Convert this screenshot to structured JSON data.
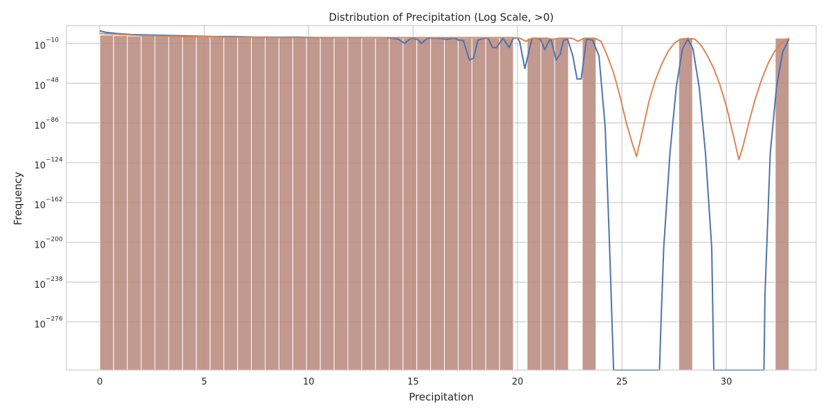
{
  "chart_data": {
    "type": "bar",
    "title": "Distribution of Precipitation (Log Scale, >0)",
    "xlabel": "Precipitation",
    "ylabel": "Frequency",
    "xlim": [
      -1.6,
      34.3
    ],
    "ylim_log10": [
      -322,
      7
    ],
    "y_scale": "log",
    "grid": true,
    "legend": "none",
    "x_ticks": [
      0,
      5,
      10,
      15,
      20,
      25,
      30
    ],
    "x_tick_labels": [
      "0",
      "5",
      "10",
      "15",
      "20",
      "25",
      "30"
    ],
    "y_ticks_log10": [
      -10,
      -48,
      -86,
      -124,
      -162,
      -200,
      -238,
      -276
    ],
    "y_tick_labels": [
      {
        "base": "10",
        "exp": "−10"
      },
      {
        "base": "10",
        "exp": "−48"
      },
      {
        "base": "10",
        "exp": "−86"
      },
      {
        "base": "10",
        "exp": "−124"
      },
      {
        "base": "10",
        "exp": "−162"
      },
      {
        "base": "10",
        "exp": "−200"
      },
      {
        "base": "10",
        "exp": "−238"
      },
      {
        "base": "10",
        "exp": "−276"
      }
    ],
    "bin_width": 0.66,
    "bars": [
      {
        "x0": 0.0,
        "log10": -2
      },
      {
        "x0": 0.66,
        "log10": -2.5
      },
      {
        "x0": 1.32,
        "log10": -3
      },
      {
        "x0": 1.98,
        "log10": -2.5
      },
      {
        "x0": 2.64,
        "log10": -3
      },
      {
        "x0": 3.3,
        "log10": -3
      },
      {
        "x0": 3.96,
        "log10": -3.5
      },
      {
        "x0": 4.62,
        "log10": -3.5
      },
      {
        "x0": 5.28,
        "log10": -4
      },
      {
        "x0": 5.94,
        "log10": -3.5
      },
      {
        "x0": 6.6,
        "log10": -4
      },
      {
        "x0": 7.26,
        "log10": -4
      },
      {
        "x0": 7.92,
        "log10": -4
      },
      {
        "x0": 8.58,
        "log10": -4
      },
      {
        "x0": 9.24,
        "log10": -4.5
      },
      {
        "x0": 9.9,
        "log10": -4.5
      },
      {
        "x0": 10.56,
        "log10": -4.5
      },
      {
        "x0": 11.22,
        "log10": -5
      },
      {
        "x0": 11.88,
        "log10": -4.5
      },
      {
        "x0": 12.54,
        "log10": -5
      },
      {
        "x0": 13.2,
        "log10": -5
      },
      {
        "x0": 13.86,
        "log10": -5
      },
      {
        "x0": 14.52,
        "log10": -5
      },
      {
        "x0": 15.18,
        "log10": -5
      },
      {
        "x0": 15.84,
        "log10": -5
      },
      {
        "x0": 16.5,
        "log10": -5
      },
      {
        "x0": 17.16,
        "log10": -5
      },
      {
        "x0": 17.82,
        "log10": -5
      },
      {
        "x0": 18.48,
        "log10": -5
      },
      {
        "x0": 19.14,
        "log10": -5
      },
      {
        "x0": 20.46,
        "log10": -5
      },
      {
        "x0": 21.12,
        "log10": -5
      },
      {
        "x0": 21.78,
        "log10": -5
      },
      {
        "x0": 23.1,
        "log10": -5
      },
      {
        "x0": 27.72,
        "log10": -5
      },
      {
        "x0": 32.34,
        "log10": -5
      }
    ],
    "series": [
      {
        "color": "#4c72b0",
        "points": [
          [
            0,
            2
          ],
          [
            0.3,
            0.5
          ],
          [
            0.8,
            -0.5
          ],
          [
            1.5,
            -1.5
          ],
          [
            2.5,
            -2
          ],
          [
            3.5,
            -2.5
          ],
          [
            4.5,
            -3
          ],
          [
            5.5,
            -3.5
          ],
          [
            6.5,
            -3.5
          ],
          [
            7.5,
            -4
          ],
          [
            8.5,
            -4
          ],
          [
            9.5,
            -4
          ],
          [
            10.5,
            -4.5
          ],
          [
            11.5,
            -4.5
          ],
          [
            12.5,
            -4.5
          ],
          [
            13.5,
            -4.5
          ],
          [
            14,
            -5
          ],
          [
            14.3,
            -6
          ],
          [
            14.6,
            -10
          ],
          [
            14.9,
            -5
          ],
          [
            15.2,
            -6
          ],
          [
            15.4,
            -10
          ],
          [
            15.7,
            -5
          ],
          [
            16.2,
            -5
          ],
          [
            16.6,
            -6
          ],
          [
            17.0,
            -5
          ],
          [
            17.2,
            -7
          ],
          [
            17.4,
            -7
          ],
          [
            17.7,
            -26
          ],
          [
            17.9,
            -24
          ],
          [
            18.1,
            -7
          ],
          [
            18.4,
            -5
          ],
          [
            18.6,
            -5
          ],
          [
            18.8,
            -14
          ],
          [
            19.0,
            -14
          ],
          [
            19.3,
            -5
          ],
          [
            19.6,
            -14
          ],
          [
            19.8,
            -5
          ],
          [
            20.0,
            -5
          ],
          [
            20.1,
            -8
          ],
          [
            20.35,
            -34
          ],
          [
            20.7,
            -5
          ],
          [
            20.9,
            -5
          ],
          [
            21.1,
            -6
          ],
          [
            21.3,
            -16
          ],
          [
            21.5,
            -8
          ],
          [
            21.6,
            -6
          ],
          [
            21.85,
            -26
          ],
          [
            22.05,
            -20
          ],
          [
            22.2,
            -7
          ],
          [
            22.4,
            -6
          ],
          [
            22.65,
            -22
          ],
          [
            22.85,
            -44
          ],
          [
            23.05,
            -44
          ],
          [
            23.3,
            -6
          ],
          [
            23.6,
            -7
          ],
          [
            23.9,
            -22
          ],
          [
            24.2,
            -90
          ],
          [
            24.4,
            -200
          ],
          [
            24.6,
            -322
          ],
          [
            26.8,
            -322
          ],
          [
            26.85,
            -290
          ],
          [
            27.0,
            -205
          ],
          [
            27.3,
            -115
          ],
          [
            27.6,
            -52
          ],
          [
            27.9,
            -15
          ],
          [
            28.15,
            -6
          ],
          [
            28.4,
            -15
          ],
          [
            28.7,
            -52
          ],
          [
            29.0,
            -115
          ],
          [
            29.3,
            -205
          ],
          [
            29.4,
            -322
          ],
          [
            31.8,
            -322
          ],
          [
            31.85,
            -250
          ],
          [
            32.1,
            -115
          ],
          [
            32.4,
            -52
          ],
          [
            32.7,
            -18
          ],
          [
            33.0,
            -6
          ]
        ]
      },
      {
        "color": "#dd8452",
        "points": [
          [
            0,
            -0.5
          ],
          [
            1,
            -1.5
          ],
          [
            2,
            -2.5
          ],
          [
            3,
            -3
          ],
          [
            4,
            -3.5
          ],
          [
            5,
            -3.5
          ],
          [
            6,
            -4
          ],
          [
            7,
            -4
          ],
          [
            8,
            -4
          ],
          [
            9,
            -4.5
          ],
          [
            10,
            -4.5
          ],
          [
            11,
            -4.5
          ],
          [
            12,
            -4.5
          ],
          [
            13,
            -4.5
          ],
          [
            14,
            -4.5
          ],
          [
            15,
            -4.5
          ],
          [
            16,
            -4.5
          ],
          [
            17,
            -4.5
          ],
          [
            18,
            -4.5
          ],
          [
            19,
            -4.5
          ],
          [
            19.8,
            -4.5
          ],
          [
            20.1,
            -5
          ],
          [
            20.4,
            -8
          ],
          [
            20.7,
            -5
          ],
          [
            21.4,
            -5
          ],
          [
            21.7,
            -6
          ],
          [
            22.0,
            -5
          ],
          [
            22.6,
            -5
          ],
          [
            22.9,
            -8
          ],
          [
            23.2,
            -5
          ],
          [
            23.7,
            -5
          ],
          [
            24.0,
            -8
          ],
          [
            24.3,
            -22
          ],
          [
            24.6,
            -38
          ],
          [
            24.9,
            -60
          ],
          [
            25.2,
            -85
          ],
          [
            25.5,
            -106
          ],
          [
            25.7,
            -118
          ],
          [
            26.0,
            -92
          ],
          [
            26.3,
            -65
          ],
          [
            26.6,
            -45
          ],
          [
            26.9,
            -30
          ],
          [
            27.2,
            -18
          ],
          [
            27.5,
            -10
          ],
          [
            27.8,
            -6
          ],
          [
            28.15,
            -5
          ],
          [
            28.5,
            -6
          ],
          [
            28.8,
            -12
          ],
          [
            29.1,
            -22
          ],
          [
            29.4,
            -34
          ],
          [
            29.7,
            -50
          ],
          [
            30.0,
            -70
          ],
          [
            30.3,
            -95
          ],
          [
            30.6,
            -121
          ],
          [
            30.8,
            -108
          ],
          [
            31.1,
            -84
          ],
          [
            31.4,
            -62
          ],
          [
            31.7,
            -44
          ],
          [
            32.0,
            -29
          ],
          [
            32.3,
            -18
          ],
          [
            32.6,
            -10
          ],
          [
            32.9,
            -6
          ],
          [
            33.0,
            -5
          ]
        ]
      }
    ]
  }
}
